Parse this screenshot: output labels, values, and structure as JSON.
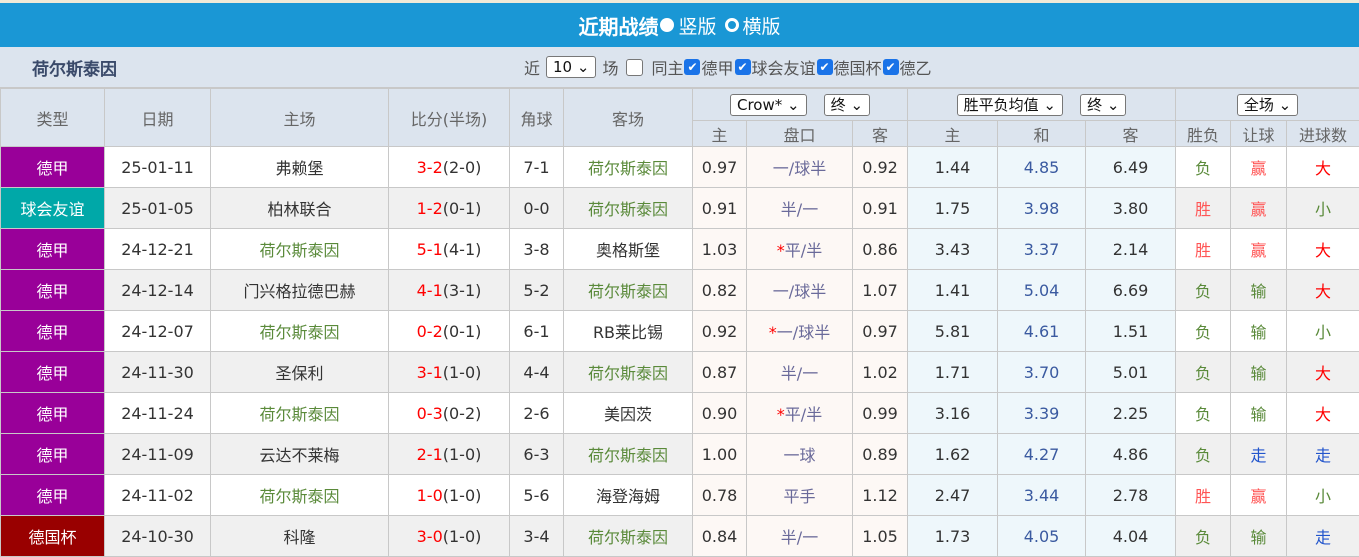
{
  "title": "近期战绩",
  "view_vertical": "竖版",
  "view_horizontal": "横版",
  "team": "荷尔斯泰因",
  "filter": {
    "near": "近",
    "count": "10",
    "matches": "场",
    "same_home": "同主",
    "leagues": [
      "德甲",
      "球会友谊",
      "德国杯",
      "德乙"
    ]
  },
  "headers": {
    "type": "类型",
    "date": "日期",
    "home": "主场",
    "score": "比分(半场)",
    "corner": "角球",
    "away": "客场",
    "company": "Crow*",
    "final1": "终",
    "odds_type": "胜平负均值",
    "final2": "终",
    "period": "全场",
    "sub": [
      "主",
      "盘口",
      "客",
      "主",
      "和",
      "客",
      "胜负",
      "让球",
      "进球数"
    ]
  },
  "colors": {
    "德甲": "#990099",
    "球会友谊": "#00a8a8",
    "德国杯": "#990000",
    "team_highlight": "#5a8a3a"
  },
  "rows": [
    [
      "德甲",
      "25-01-11",
      "弗赖堡",
      "3-2",
      "(2-0)",
      "7-1",
      "荷尔斯泰因",
      "0.97",
      "",
      "一/球半",
      "0.92",
      "1.44",
      "4.85",
      "6.49",
      "负",
      "赢",
      "大"
    ],
    [
      "球会友谊",
      "25-01-05",
      "柏林联合",
      "1-2",
      "(0-1)",
      "0-0",
      "荷尔斯泰因",
      "0.91",
      "",
      "半/一",
      "0.91",
      "1.75",
      "3.98",
      "3.80",
      "胜",
      "赢",
      "小"
    ],
    [
      "德甲",
      "24-12-21",
      "荷尔斯泰因",
      "5-1",
      "(4-1)",
      "3-8",
      "奥格斯堡",
      "1.03",
      "*",
      "平/半",
      "0.86",
      "3.43",
      "3.37",
      "2.14",
      "胜",
      "赢",
      "大"
    ],
    [
      "德甲",
      "24-12-14",
      "门兴格拉德巴赫",
      "4-1",
      "(3-1)",
      "5-2",
      "荷尔斯泰因",
      "0.82",
      "",
      "一/球半",
      "1.07",
      "1.41",
      "5.04",
      "6.69",
      "负",
      "输",
      "大"
    ],
    [
      "德甲",
      "24-12-07",
      "荷尔斯泰因",
      "0-2",
      "(0-1)",
      "6-1",
      "RB莱比锡",
      "0.92",
      "*",
      "一/球半",
      "0.97",
      "5.81",
      "4.61",
      "1.51",
      "负",
      "输",
      "小"
    ],
    [
      "德甲",
      "24-11-30",
      "圣保利",
      "3-1",
      "(1-0)",
      "4-4",
      "荷尔斯泰因",
      "0.87",
      "",
      "半/一",
      "1.02",
      "1.71",
      "3.70",
      "5.01",
      "负",
      "输",
      "大"
    ],
    [
      "德甲",
      "24-11-24",
      "荷尔斯泰因",
      "0-3",
      "(0-2)",
      "2-6",
      "美因茨",
      "0.90",
      "*",
      "平/半",
      "0.99",
      "3.16",
      "3.39",
      "2.25",
      "负",
      "输",
      "大"
    ],
    [
      "德甲",
      "24-11-09",
      "云达不莱梅",
      "2-1",
      "(1-0)",
      "6-3",
      "荷尔斯泰因",
      "1.00",
      "",
      "一球",
      "0.89",
      "1.62",
      "4.27",
      "4.86",
      "负",
      "走",
      "走"
    ],
    [
      "德甲",
      "24-11-02",
      "荷尔斯泰因",
      "1-0",
      "(1-0)",
      "5-6",
      "海登海姆",
      "0.78",
      "",
      "平手",
      "1.12",
      "2.47",
      "3.44",
      "2.78",
      "胜",
      "赢",
      "小"
    ],
    [
      "德国杯",
      "24-10-30",
      "科隆",
      "3-0",
      "(1-0)",
      "3-4",
      "荷尔斯泰因",
      "0.84",
      "",
      "半/一",
      "1.05",
      "1.73",
      "4.05",
      "4.04",
      "负",
      "输",
      "走"
    ]
  ]
}
